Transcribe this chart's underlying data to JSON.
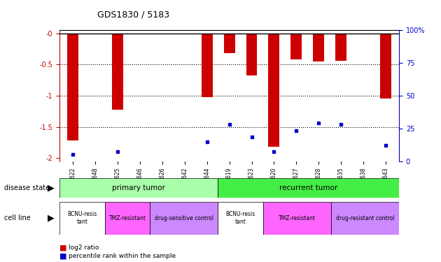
{
  "title": "GDS1830 / 5183",
  "samples": [
    "GSM40622",
    "GSM40648",
    "GSM40625",
    "GSM40646",
    "GSM40626",
    "GSM40642",
    "GSM40644",
    "GSM40619",
    "GSM40623",
    "GSM40620",
    "GSM40627",
    "GSM40628",
    "GSM40635",
    "GSM40638",
    "GSM40643"
  ],
  "log2_ratio": [
    -1.72,
    0.0,
    -1.23,
    0.0,
    0.0,
    0.0,
    -1.02,
    -0.32,
    -0.68,
    -1.82,
    -0.42,
    -0.45,
    -0.44,
    0.0,
    -1.05
  ],
  "percentile": [
    3,
    0,
    5,
    0,
    0,
    0,
    13,
    27,
    17,
    5,
    22,
    28,
    27,
    0,
    10
  ],
  "ylim_left": [
    -2.05,
    0.05
  ],
  "yticks_left": [
    0,
    -0.5,
    -1.0,
    -1.5,
    -2.0
  ],
  "ytick_labels_left": [
    "-0",
    "-0.5",
    "-1",
    "-1.5",
    "-2"
  ],
  "ylim_right": [
    0,
    100
  ],
  "yticks_right": [
    0,
    25,
    50,
    75,
    100
  ],
  "ytick_labels_right": [
    "0",
    "25",
    "50",
    "75",
    "100%"
  ],
  "disease_state_groups": [
    {
      "label": "primary tumor",
      "start": 0,
      "end": 6,
      "color": "#aaffaa"
    },
    {
      "label": "recurrent tumor",
      "start": 7,
      "end": 14,
      "color": "#44ee44"
    }
  ],
  "cell_line_groups": [
    {
      "label": "BCNU-resis\ntant",
      "start": 0,
      "end": 1,
      "color": "#ffffff"
    },
    {
      "label": "TMZ-resistant",
      "start": 2,
      "end": 3,
      "color": "#ff66ff"
    },
    {
      "label": "drug-sensitive control",
      "start": 4,
      "end": 6,
      "color": "#cc88ff"
    },
    {
      "label": "BCNU-resis\ntant",
      "start": 7,
      "end": 8,
      "color": "#ffffff"
    },
    {
      "label": "TMZ-resistant",
      "start": 9,
      "end": 11,
      "color": "#ff66ff"
    },
    {
      "label": "drug-resistant control",
      "start": 12,
      "end": 14,
      "color": "#cc88ff"
    }
  ],
  "bar_color": "#cc0000",
  "dot_color": "#0000cc",
  "axis_color_left": "#cc0000",
  "axis_color_right": "#0000cc",
  "background_color": "#ffffff",
  "plot_bg_color": "#ffffff"
}
